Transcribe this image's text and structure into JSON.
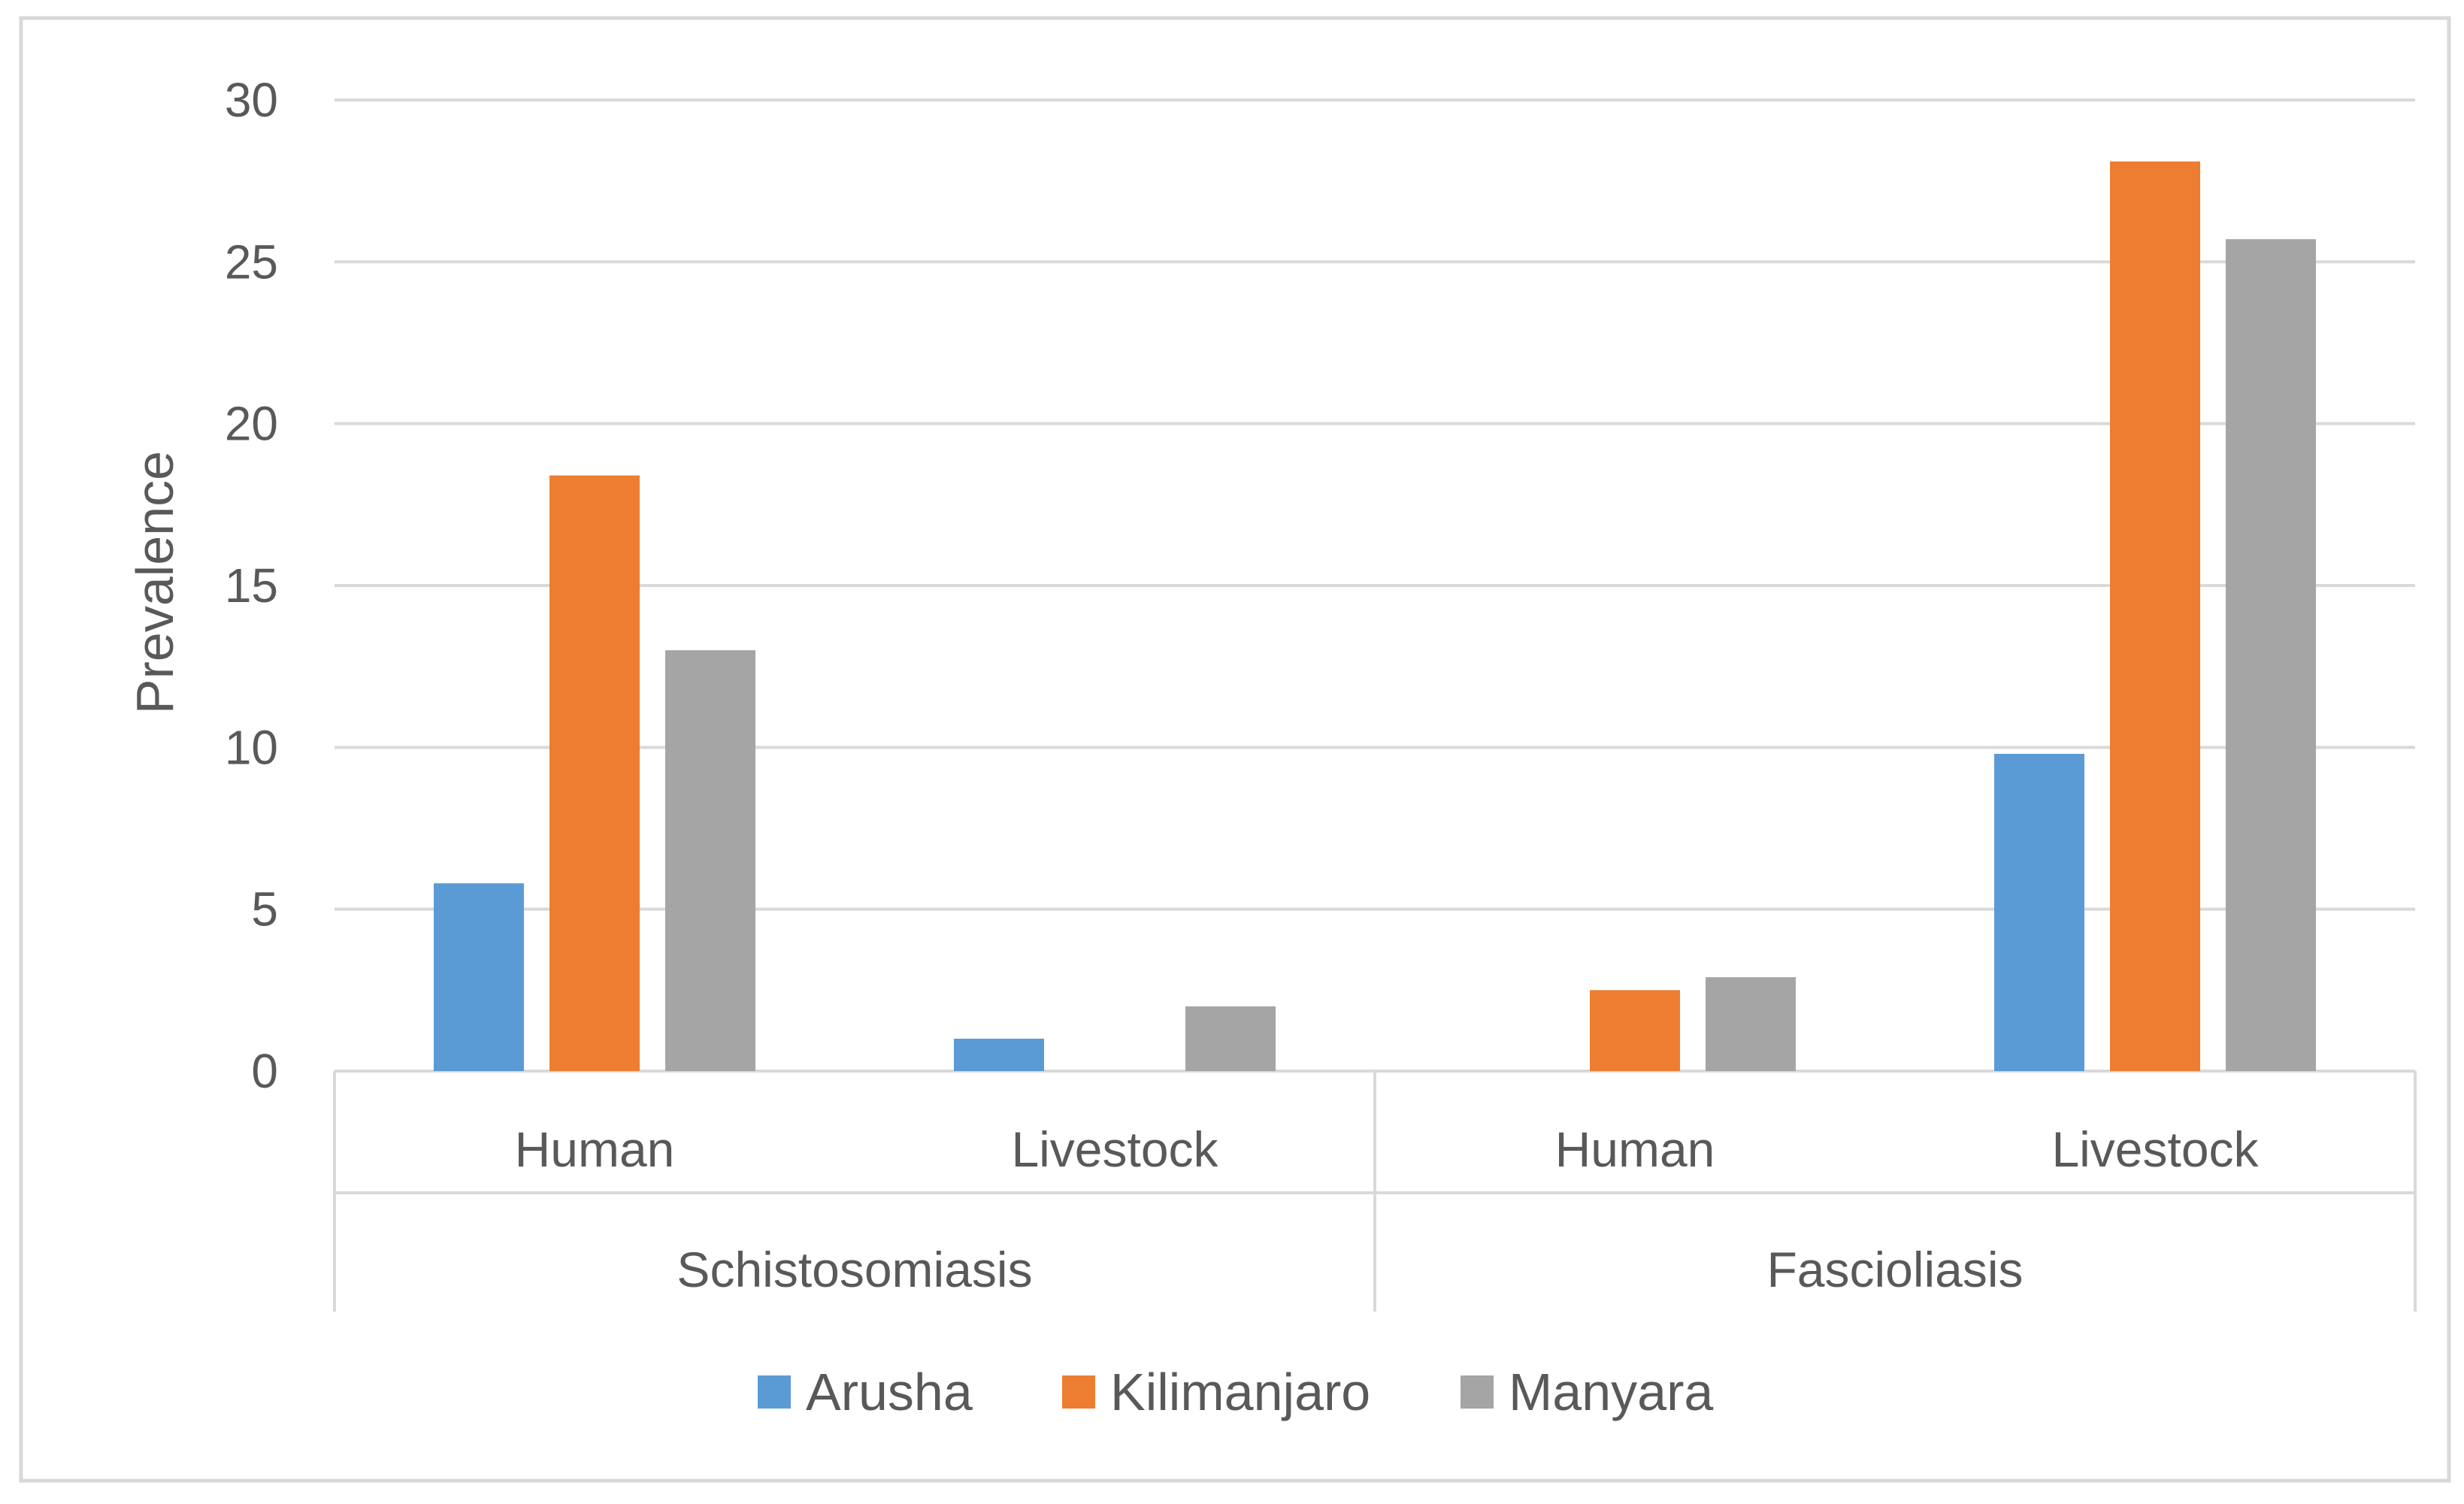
{
  "chart_data": {
    "type": "bar",
    "title": "",
    "xlabel": "",
    "ylabel": "Prevalence",
    "ylim": [
      0,
      30
    ],
    "yticks": [
      "0",
      "5",
      "10",
      "15",
      "20",
      "25",
      "30"
    ],
    "grid": true,
    "legend_position": "bottom",
    "groups": [
      {
        "label": "Schistosomiasis",
        "categories": [
          "Human",
          "Livestock"
        ]
      },
      {
        "label": "Fascioliasis",
        "categories": [
          "Human",
          "Livestock"
        ]
      }
    ],
    "categories": [
      "Human",
      "Livestock",
      "Human",
      "Livestock"
    ],
    "series": [
      {
        "name": "Arusha",
        "color": "#5b9bd5",
        "values": [
          5.8,
          1.0,
          0,
          9.8
        ]
      },
      {
        "name": "Kilimanjaro",
        "color": "#ed7d31",
        "values": [
          18.4,
          0,
          2.5,
          28.1
        ]
      },
      {
        "name": "Manyara",
        "color": "#a5a5a5",
        "values": [
          13.0,
          2.0,
          2.9,
          25.7
        ]
      }
    ]
  },
  "colors": {
    "gridline": "#d9d9d9",
    "frame": "#d9d9d9",
    "text": "#595959"
  }
}
